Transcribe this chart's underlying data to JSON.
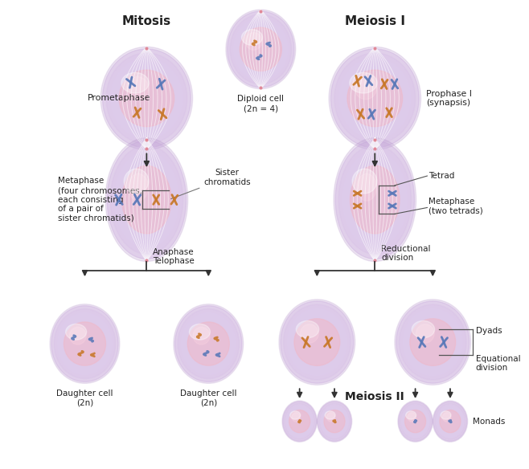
{
  "bg_color": "#ffffff",
  "title_mitosis": "Mitosis",
  "title_meiosis1": "Meiosis I",
  "title_meiosis2": "Meiosis II",
  "label_prometaphase": "Prometaphase",
  "label_diploid": "Diploid cell\n(2n = 4)",
  "label_prophase1": "Prophase I\n(synapsis)",
  "label_metaphase_mit": "Metaphase\n(four chromosomes,\neach consisting\nof a pair of\nsister chromatids)",
  "label_sister": "Sister\nchromatids",
  "label_tetrad": "Tetrad",
  "label_metaphase_mei": "Metaphase\n(two tetrads)",
  "label_anaphase": "Anaphase\nTelophase",
  "label_daughter1": "Daughter cell\n(2n)",
  "label_daughter2": "Daughter cell\n(2n)",
  "label_reductional": "Reductional\ndivision",
  "label_dyads": "Dyads",
  "label_equational": "Equational\ndivision",
  "label_monads": "Monads",
  "chr_blue": "#5878b8",
  "chr_orange": "#c87828",
  "line_color": "#333333",
  "text_color": "#222222",
  "arrow_color": "#333333"
}
